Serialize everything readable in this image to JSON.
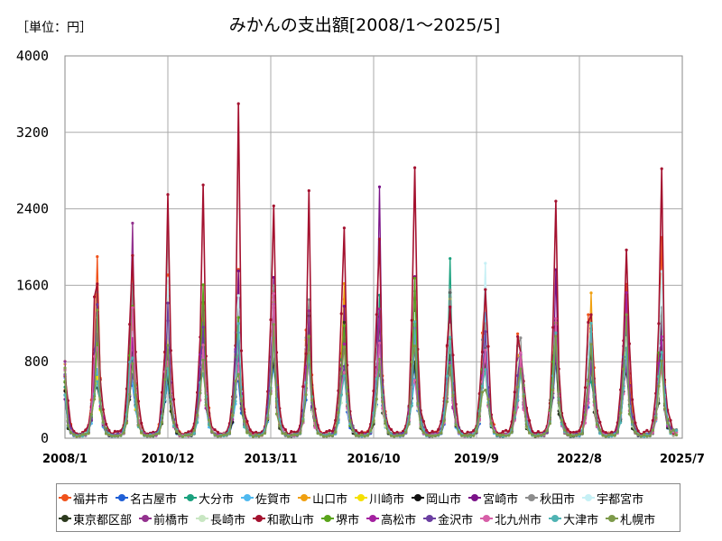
{
  "chart_data": {
    "type": "line",
    "title": "みかんの支出額[2008/1～2025/5]",
    "unit_label": "［単位：円］",
    "xlabel": "",
    "ylabel": "",
    "x_range": [
      "2008/1",
      "2025/7"
    ],
    "x_ticks": [
      "2008/1",
      "2010/12",
      "2013/11",
      "2016/10",
      "2019/9",
      "2022/8",
      "2025/7"
    ],
    "y_ticks": [
      0,
      800,
      1600,
      2400,
      3200,
      4000
    ],
    "ylim": [
      0,
      4000
    ],
    "grid": true,
    "legend_position": "bottom",
    "season_pattern": {
      "description_values_yen": "typical monthly values per calendar month (Jan..Dec) used as base profile",
      "base": [
        480,
        200,
        90,
        45,
        30,
        35,
        40,
        45,
        90,
        280,
        700,
        1150
      ]
    },
    "december_peaks": {
      "years": [
        "2008",
        "2009",
        "2010",
        "2011",
        "2012",
        "2013",
        "2014",
        "2015",
        "2016",
        "2017",
        "2018",
        "2019",
        "2020",
        "2021",
        "2022",
        "2023",
        "2024"
      ],
      "max_series_value": [
        1900,
        2250,
        2550,
        2650,
        3500,
        2430,
        2590,
        2200,
        2630,
        2830,
        1880,
        1830,
        1050,
        2480,
        1520,
        1970,
        2820
      ],
      "max_series_name": [
        "福井市",
        "前橋市",
        "和歌山市",
        "和歌山市",
        "和歌山市",
        "和歌山市",
        "和歌山市",
        "和歌山市",
        "宮崎市",
        "和歌山市",
        "大分市",
        "宇都宮市",
        "秋田市",
        "和歌山市",
        "山口市",
        "和歌山市",
        "和歌山市"
      ]
    },
    "series": [
      {
        "name": "福井市",
        "color": "#f0521b",
        "scale": 1.25
      },
      {
        "name": "名古屋市",
        "color": "#1f5fd6",
        "scale": 0.72
      },
      {
        "name": "大分市",
        "color": "#1aa17e",
        "scale": 0.9
      },
      {
        "name": "佐賀市",
        "color": "#4fb9ef",
        "scale": 0.78
      },
      {
        "name": "山口市",
        "color": "#f0a010",
        "scale": 1.0
      },
      {
        "name": "川崎市",
        "color": "#f5e000",
        "scale": 0.85
      },
      {
        "name": "岡山市",
        "color": "#111111",
        "scale": 0.82
      },
      {
        "name": "宮崎市",
        "color": "#7a1288",
        "scale": 0.95
      },
      {
        "name": "秋田市",
        "color": "#8c8c8c",
        "scale": 1.1
      },
      {
        "name": "宇都宮市",
        "color": "#c6f0f5",
        "scale": 1.05
      },
      {
        "name": "東京都区部",
        "color": "#2c3a1e",
        "scale": 0.7
      },
      {
        "name": "前橋市",
        "color": "#93318e",
        "scale": 0.95
      },
      {
        "name": "長崎市",
        "color": "#c8e6c2",
        "scale": 0.8
      },
      {
        "name": "和歌山市",
        "color": "#a4112f",
        "scale": 1.6
      },
      {
        "name": "堺市",
        "color": "#5aa41b",
        "scale": 0.9
      },
      {
        "name": "高松市",
        "color": "#a421a0",
        "scale": 0.88
      },
      {
        "name": "金沢市",
        "color": "#6b3fa1",
        "scale": 0.92
      },
      {
        "name": "北九州市",
        "color": "#d75fa8",
        "scale": 0.8
      },
      {
        "name": "大津市",
        "color": "#4fb3b3",
        "scale": 0.78
      },
      {
        "name": "札幌市",
        "color": "#7d9a4a",
        "scale": 0.75
      }
    ]
  }
}
